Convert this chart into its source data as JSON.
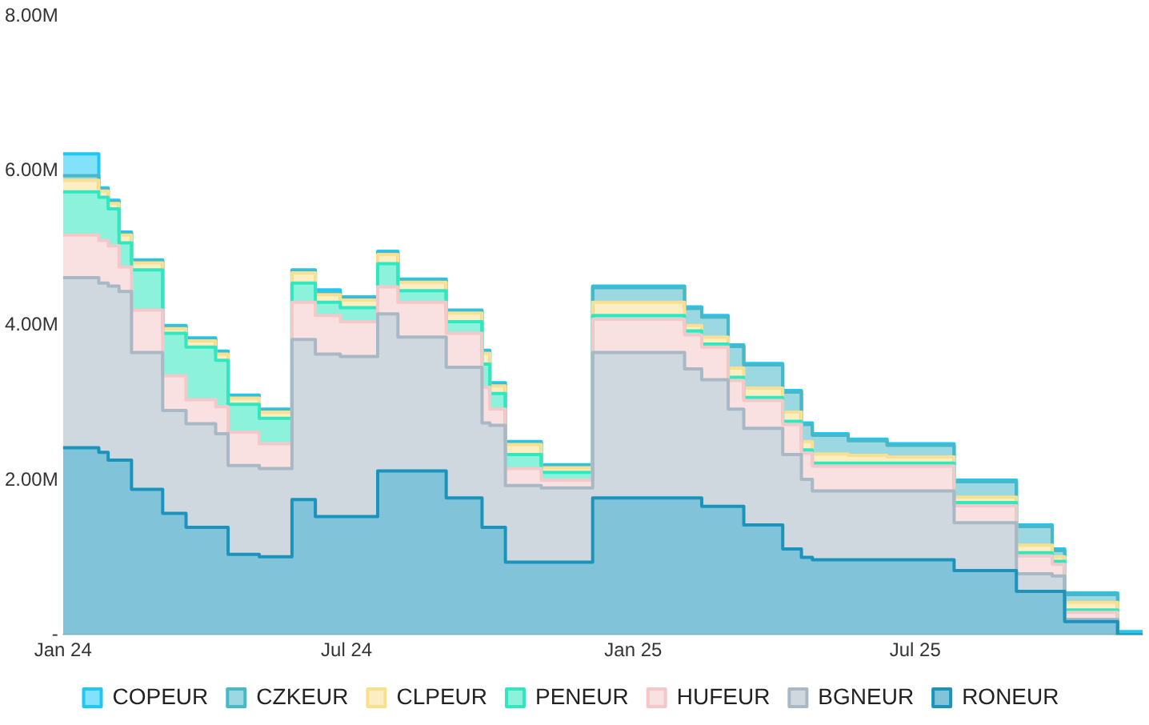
{
  "chart_data": {
    "type": "area",
    "stacked": true,
    "legend": "bottom",
    "grid": false,
    "x": [
      "2024-01-01",
      "2024-01-24",
      "2024-01-24",
      "2024-01-30",
      "2024-01-30",
      "2024-02-06",
      "2024-02-06",
      "2024-02-14",
      "2024-02-14",
      "2024-03-05",
      "2024-03-05",
      "2024-03-20",
      "2024-03-20",
      "2024-04-08",
      "2024-04-08",
      "2024-04-16",
      "2024-04-16",
      "2024-05-06",
      "2024-05-06",
      "2024-05-27",
      "2024-05-27",
      "2024-06-11",
      "2024-06-11",
      "2024-06-27",
      "2024-06-27",
      "2024-07-21",
      "2024-07-21",
      "2024-08-03",
      "2024-08-03",
      "2024-09-03",
      "2024-09-03",
      "2024-09-26",
      "2024-09-26",
      "2024-10-01",
      "2024-10-01",
      "2024-10-11",
      "2024-10-11",
      "2024-11-03",
      "2024-11-03",
      "2024-12-06",
      "2024-12-06",
      "2025-02-03",
      "2025-02-03",
      "2025-02-14",
      "2025-02-14",
      "2025-03-03",
      "2025-03-03",
      "2025-03-13",
      "2025-03-13",
      "2025-04-07",
      "2025-04-07",
      "2025-04-19",
      "2025-04-19",
      "2025-04-26",
      "2025-04-26",
      "2025-05-19",
      "2025-05-19",
      "2025-06-13",
      "2025-06-13",
      "2025-07-26",
      "2025-07-26",
      "2025-09-04",
      "2025-09-04",
      "2025-09-27",
      "2025-09-27",
      "2025-10-05",
      "2025-10-05",
      "2025-11-08",
      "2025-11-08",
      "2025-11-24"
    ],
    "xlim": [
      "2024-01-01",
      "2025-11-24"
    ],
    "xticks": [
      {
        "value": "2024-01-01",
        "label": "Jan 24"
      },
      {
        "value": "2024-07-01",
        "label": "Jul 24"
      },
      {
        "value": "2025-01-01",
        "label": "Jan 25"
      },
      {
        "value": "2025-07-01",
        "label": "Jul 25"
      }
    ],
    "ylim": [
      0,
      8
    ],
    "yticks": [
      {
        "value": 0,
        "label": "-"
      },
      {
        "value": 2,
        "label": "2.00M"
      },
      {
        "value": 4,
        "label": "4.00M"
      },
      {
        "value": 6,
        "label": "6.00M"
      },
      {
        "value": 8,
        "label": "8.00M"
      }
    ],
    "series": [
      {
        "name": "RONEUR",
        "color": "#1a94bc",
        "values": [
          2.42,
          2.42,
          2.36,
          2.36,
          2.26,
          2.26,
          2.26,
          2.26,
          1.88,
          1.88,
          1.57,
          1.57,
          1.39,
          1.39,
          1.39,
          1.39,
          1.04,
          1.04,
          1.01,
          1.01,
          1.75,
          1.75,
          1.53,
          1.53,
          1.53,
          1.53,
          2.12,
          2.12,
          2.12,
          2.12,
          1.77,
          1.77,
          1.39,
          1.39,
          1.39,
          1.39,
          0.94,
          0.94,
          0.94,
          0.94,
          1.77,
          1.77,
          1.77,
          1.77,
          1.66,
          1.66,
          1.66,
          1.66,
          1.42,
          1.42,
          1.11,
          1.11,
          1.0,
          1.0,
          0.97,
          0.97,
          0.97,
          0.97,
          0.97,
          0.97,
          0.83,
          0.83,
          0.56,
          0.56,
          0.56,
          0.56,
          0.17,
          0.17,
          0,
          0
        ]
      },
      {
        "name": "BGNEUR",
        "color": "#a8b8c4",
        "values": [
          2.2,
          2.2,
          2.19,
          2.19,
          2.25,
          2.25,
          2.18,
          2.18,
          1.77,
          1.77,
          1.33,
          1.33,
          1.34,
          1.34,
          1.21,
          1.21,
          1.15,
          1.15,
          1.14,
          1.14,
          2.07,
          2.07,
          2.1,
          2.1,
          2.07,
          2.07,
          2.03,
          2.03,
          1.73,
          1.73,
          1.69,
          1.69,
          1.35,
          1.35,
          1.32,
          1.32,
          0.99,
          0.99,
          0.96,
          0.96,
          1.88,
          1.88,
          1.67,
          1.67,
          1.64,
          1.64,
          1.26,
          1.26,
          1.25,
          1.25,
          1.22,
          1.22,
          1.01,
          1.01,
          0.89,
          0.89,
          0.89,
          0.89,
          0.89,
          0.89,
          0.62,
          0.62,
          0.23,
          0.23,
          0.2,
          0.2,
          0.03,
          0.03,
          0,
          0
        ]
      },
      {
        "name": "HUFEUR",
        "color": "#f4c8c8",
        "values": [
          0.55,
          0.55,
          0.55,
          0.55,
          0.52,
          0.52,
          0.32,
          0.32,
          0.55,
          0.55,
          0.45,
          0.45,
          0.31,
          0.31,
          0.35,
          0.35,
          0.43,
          0.43,
          0.32,
          0.32,
          0.48,
          0.48,
          0.5,
          0.5,
          0.45,
          0.45,
          0.35,
          0.35,
          0.45,
          0.45,
          0.44,
          0.44,
          0.46,
          0.46,
          0.21,
          0.21,
          0.22,
          0.22,
          0.1,
          0.1,
          0.43,
          0.43,
          0.44,
          0.44,
          0.42,
          0.42,
          0.37,
          0.37,
          0.36,
          0.36,
          0.39,
          0.39,
          0.34,
          0.34,
          0.32,
          0.32,
          0.32,
          0.32,
          0.32,
          0.32,
          0.22,
          0.22,
          0.23,
          0.23,
          0.15,
          0.15,
          0.09,
          0.09,
          0,
          0
        ]
      },
      {
        "name": "PENEUR",
        "color": "#30e8c0",
        "values": [
          0.56,
          0.56,
          0.56,
          0.56,
          0.48,
          0.48,
          0.31,
          0.31,
          0.52,
          0.52,
          0.55,
          0.55,
          0.68,
          0.68,
          0.6,
          0.6,
          0.36,
          0.36,
          0.33,
          0.33,
          0.25,
          0.25,
          0.17,
          0.17,
          0.18,
          0.18,
          0.3,
          0.3,
          0.15,
          0.15,
          0.15,
          0.15,
          0.3,
          0.3,
          0.2,
          0.2,
          0.18,
          0.18,
          0.1,
          0.1,
          0.05,
          0.05,
          0.05,
          0.05,
          0.04,
          0.04,
          0.04,
          0.04,
          0.04,
          0.04,
          0.04,
          0.04,
          0.04,
          0.04,
          0.04,
          0.04,
          0.04,
          0.04,
          0.04,
          0.04,
          0.04,
          0.04,
          0.04,
          0.04,
          0.04,
          0.04,
          0.03,
          0.03,
          0,
          0
        ]
      },
      {
        "name": "CLPEUR",
        "color": "#f8e090",
        "values": [
          0.15,
          0.15,
          0.08,
          0.08,
          0.07,
          0.07,
          0.1,
          0.1,
          0.09,
          0.09,
          0.06,
          0.06,
          0.08,
          0.08,
          0.08,
          0.08,
          0.08,
          0.08,
          0.08,
          0.08,
          0.13,
          0.13,
          0.1,
          0.1,
          0.1,
          0.1,
          0.12,
          0.12,
          0.11,
          0.11,
          0.11,
          0.11,
          0.14,
          0.14,
          0.1,
          0.1,
          0.13,
          0.13,
          0.06,
          0.06,
          0.17,
          0.17,
          0.07,
          0.07,
          0.09,
          0.09,
          0.12,
          0.12,
          0.12,
          0.12,
          0.12,
          0.12,
          0.11,
          0.11,
          0.12,
          0.12,
          0.1,
          0.1,
          0.08,
          0.08,
          0.07,
          0.07,
          0.1,
          0.1,
          0.06,
          0.06,
          0.1,
          0.1,
          0,
          0
        ]
      },
      {
        "name": "CZKEUR",
        "color": "#48b8c8",
        "values": [
          0.06,
          0.06,
          0.02,
          0.02,
          0.02,
          0.02,
          0.02,
          0.02,
          0.02,
          0.02,
          0.02,
          0.02,
          0.02,
          0.02,
          0.02,
          0.02,
          0.02,
          0.02,
          0.02,
          0.02,
          0.02,
          0.02,
          0.02,
          0.02,
          0.02,
          0.02,
          0.02,
          0.02,
          0.02,
          0.02,
          0.02,
          0.02,
          0.02,
          0.02,
          0.02,
          0.02,
          0.02,
          0.02,
          0.02,
          0.02,
          0.19,
          0.19,
          0.22,
          0.22,
          0.26,
          0.26,
          0.28,
          0.28,
          0.3,
          0.3,
          0.26,
          0.26,
          0.22,
          0.22,
          0.24,
          0.24,
          0.19,
          0.19,
          0.15,
          0.15,
          0.2,
          0.2,
          0.24,
          0.24,
          0.08,
          0.08,
          0.1,
          0.1,
          0,
          0
        ]
      },
      {
        "name": "COPEUR",
        "color": "#1ec8f4",
        "values": [
          0.28,
          0.28,
          0.02,
          0.02,
          0.02,
          0.02,
          0.02,
          0.02,
          0.02,
          0.02,
          0.02,
          0.02,
          0.02,
          0.02,
          0.02,
          0.02,
          0.02,
          0.02,
          0.02,
          0.02,
          0.02,
          0.02,
          0.04,
          0.04,
          0.02,
          0.02,
          0.02,
          0.02,
          0.02,
          0.02,
          0.02,
          0.02,
          0.02,
          0.02,
          0.02,
          0.02,
          0.02,
          0.02,
          0.02,
          0.02,
          0.02,
          0.02,
          0.02,
          0.02,
          0.02,
          0.02,
          0.02,
          0.02,
          0.02,
          0.02,
          0.02,
          0.02,
          0.02,
          0.02,
          0.02,
          0.02,
          0.02,
          0.02,
          0.02,
          0.02,
          0.02,
          0.02,
          0.02,
          0.02,
          0.02,
          0.02,
          0.02,
          0.02,
          0.04,
          0.04
        ]
      }
    ]
  }
}
